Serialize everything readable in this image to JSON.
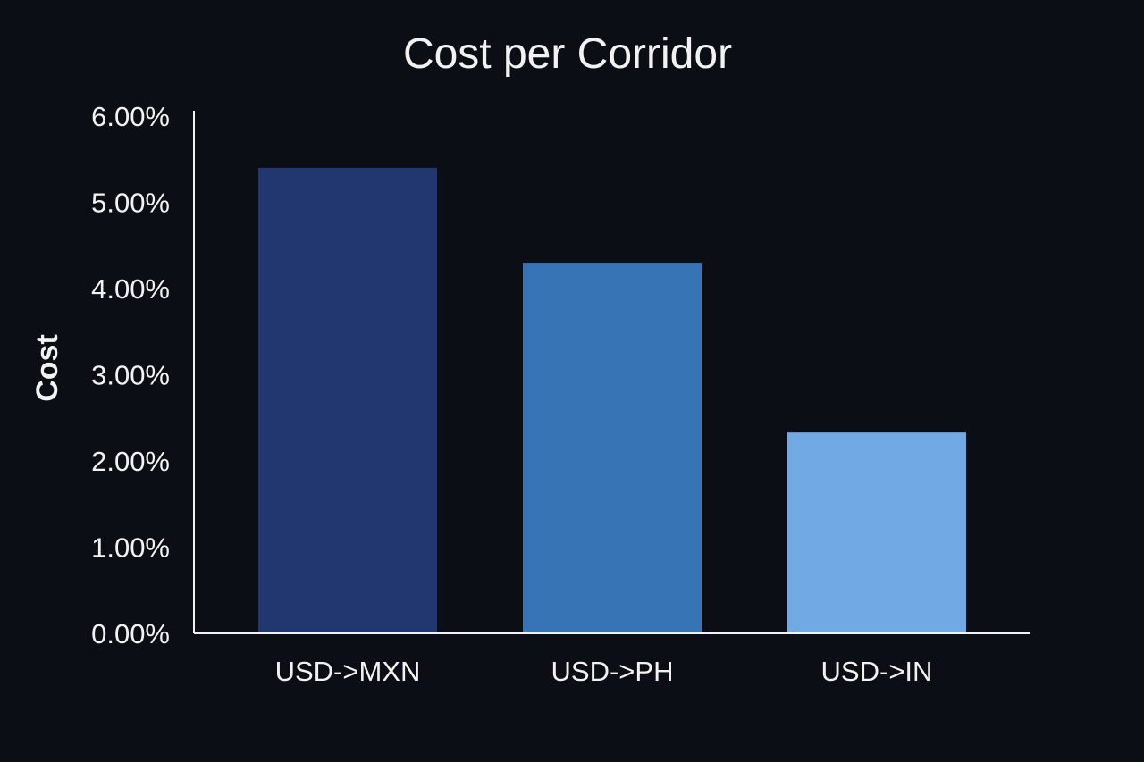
{
  "chart_data": {
    "type": "bar",
    "title": "Cost per Corridor",
    "xlabel": "",
    "ylabel": "Cost",
    "categories": [
      "USD->MXN",
      "USD->PH",
      "USD->IN"
    ],
    "values": [
      5.4,
      4.3,
      2.33
    ],
    "ylim": [
      0,
      6
    ],
    "yticks": [
      0,
      1,
      2,
      3,
      4,
      5,
      6
    ],
    "ytick_labels": [
      "0.00%",
      "1.00%",
      "2.00%",
      "3.00%",
      "4.00%",
      "5.00%",
      "6.00%"
    ],
    "bar_colors": [
      "#22366f",
      "#3674b5",
      "#70a9e3"
    ],
    "grid": false,
    "legend": "none"
  },
  "colors": {
    "background": "#0b0f15",
    "text": "#f2f2f2",
    "axis": "#f2f2f2"
  }
}
